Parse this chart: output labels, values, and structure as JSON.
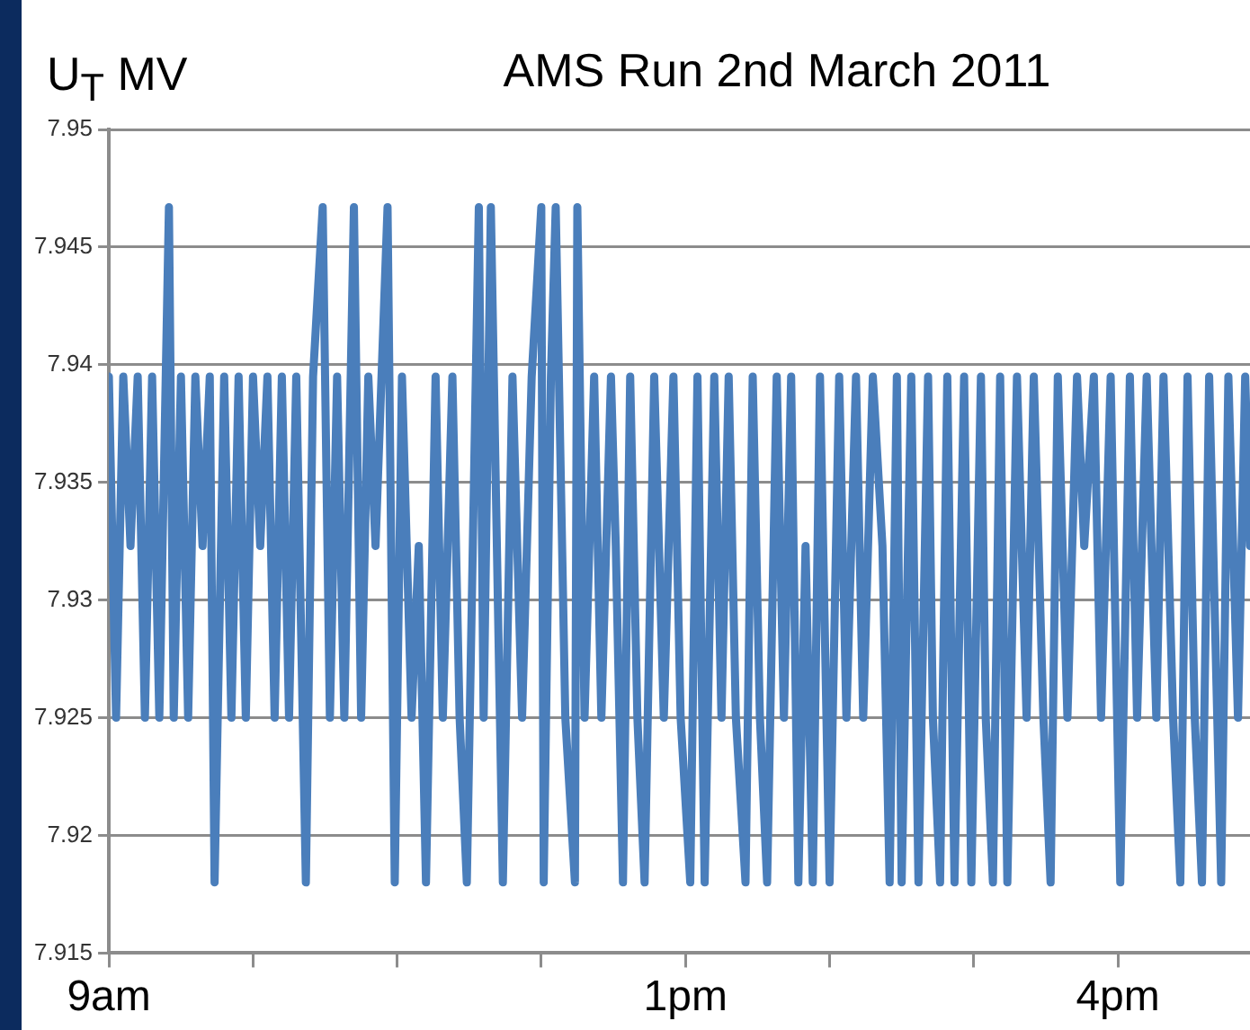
{
  "chart_data": {
    "type": "line",
    "title": "AMS Run 2nd March 2011",
    "ylabel": "U$_{T}$ MV",
    "x": [
      "2011-03-02T09:00",
      "2011-03-02T09:03",
      "2011-03-02T09:06",
      "2011-03-02T09:09",
      "2011-03-02T09:12",
      "2011-03-02T09:15",
      "2011-03-02T09:18",
      "2011-03-02T09:21",
      "2011-03-02T09:25",
      "2011-03-02T09:27",
      "2011-03-02T09:30",
      "2011-03-02T09:33",
      "2011-03-02T09:36",
      "2011-03-02T09:39",
      "2011-03-02T09:42",
      "2011-03-02T09:44",
      "2011-03-02T09:48",
      "2011-03-02T09:51",
      "2011-03-02T09:54",
      "2011-03-02T09:57",
      "2011-03-02T10:00",
      "2011-03-02T10:03",
      "2011-03-02T10:06",
      "2011-03-02T10:09",
      "2011-03-02T10:12",
      "2011-03-02T10:15",
      "2011-03-02T10:18",
      "2011-03-02T10:22",
      "2011-03-02T10:25",
      "2011-03-02T10:29",
      "2011-03-02T10:32",
      "2011-03-02T10:35",
      "2011-03-02T10:38",
      "2011-03-02T10:42",
      "2011-03-02T10:45",
      "2011-03-02T10:48",
      "2011-03-02T10:51",
      "2011-03-02T10:56",
      "2011-03-02T10:59",
      "2011-03-02T11:02",
      "2011-03-02T11:06",
      "2011-03-02T11:09",
      "2011-03-02T11:12",
      "2011-03-02T11:16",
      "2011-03-02T11:19",
      "2011-03-02T11:23",
      "2011-03-02T11:26",
      "2011-03-02T11:29",
      "2011-03-02T11:34",
      "2011-03-02T11:36",
      "2011-03-02T11:39",
      "2011-03-02T11:44",
      "2011-03-02T11:48",
      "2011-03-02T11:52",
      "2011-03-02T11:56",
      "2011-03-02T12:00",
      "2011-03-02T12:01",
      "2011-03-02T12:04",
      "2011-03-02T12:06",
      "2011-03-02T12:10",
      "2011-03-02T12:14",
      "2011-03-02T12:15",
      "2011-03-02T12:18",
      "2011-03-02T12:22",
      "2011-03-02T12:25",
      "2011-03-02T12:29",
      "2011-03-02T12:31",
      "2011-03-02T12:34",
      "2011-03-02T12:37",
      "2011-03-02T12:40",
      "2011-03-02T12:43",
      "2011-03-02T12:47",
      "2011-03-02T12:51",
      "2011-03-02T12:55",
      "2011-03-02T12:58",
      "2011-03-02T13:02",
      "2011-03-02T13:05",
      "2011-03-02T13:08",
      "2011-03-02T13:12",
      "2011-03-02T13:15",
      "2011-03-02T13:18",
      "2011-03-02T13:21",
      "2011-03-02T13:25",
      "2011-03-02T13:28",
      "2011-03-02T13:31",
      "2011-03-02T13:34",
      "2011-03-02T13:38",
      "2011-03-02T13:41",
      "2011-03-02T13:44",
      "2011-03-02T13:47",
      "2011-03-02T13:50",
      "2011-03-02T13:53",
      "2011-03-02T13:56",
      "2011-03-02T14:00",
      "2011-03-02T14:04",
      "2011-03-02T14:07",
      "2011-03-02T14:11",
      "2011-03-02T14:14",
      "2011-03-02T14:18",
      "2011-03-02T14:22",
      "2011-03-02T14:25",
      "2011-03-02T14:28",
      "2011-03-02T14:30",
      "2011-03-02T14:34",
      "2011-03-02T14:37",
      "2011-03-02T14:41",
      "2011-03-02T14:43",
      "2011-03-02T14:46",
      "2011-03-02T14:49",
      "2011-03-02T14:52",
      "2011-03-02T14:56",
      "2011-03-02T14:59",
      "2011-03-02T15:03",
      "2011-03-02T15:05",
      "2011-03-02T15:08",
      "2011-03-02T15:11",
      "2011-03-02T15:14",
      "2011-03-02T15:18",
      "2011-03-02T15:22",
      "2011-03-02T15:25",
      "2011-03-02T15:29",
      "2011-03-02T15:32",
      "2011-03-02T15:35",
      "2011-03-02T15:39",
      "2011-03-02T15:43",
      "2011-03-02T15:46",
      "2011-03-02T15:50",
      "2011-03-02T15:53",
      "2011-03-02T15:57",
      "2011-03-02T16:01",
      "2011-03-02T16:05",
      "2011-03-02T16:08",
      "2011-03-02T16:12",
      "2011-03-02T16:16",
      "2011-03-02T16:19",
      "2011-03-02T16:23",
      "2011-03-02T16:26",
      "2011-03-02T16:29",
      "2011-03-02T16:32",
      "2011-03-02T16:35",
      "2011-03-02T16:38",
      "2011-03-02T16:43",
      "2011-03-02T16:46",
      "2011-03-02T16:50",
      "2011-03-02T16:53",
      "2011-03-02T16:55"
    ],
    "series": [
      {
        "color": "#4a7ebb",
        "values": [
          7.9395,
          7.925,
          7.9395,
          7.9323,
          7.9395,
          7.925,
          7.9395,
          7.925,
          7.9467,
          7.925,
          7.9395,
          7.925,
          7.9395,
          7.9323,
          7.9395,
          7.918,
          7.9395,
          7.925,
          7.9395,
          7.925,
          7.9395,
          7.9323,
          7.9395,
          7.925,
          7.9395,
          7.925,
          7.9395,
          7.918,
          7.9395,
          7.9467,
          7.925,
          7.9395,
          7.925,
          7.9467,
          7.925,
          7.9395,
          7.9323,
          7.9467,
          7.918,
          7.9395,
          7.925,
          7.9323,
          7.918,
          7.9395,
          7.925,
          7.9395,
          7.925,
          7.918,
          7.9467,
          7.925,
          7.9467,
          7.918,
          7.9395,
          7.925,
          7.9395,
          7.9467,
          7.918,
          7.9395,
          7.9467,
          7.925,
          7.918,
          7.9467,
          7.925,
          7.9395,
          7.925,
          7.9395,
          7.9323,
          7.918,
          7.9395,
          7.925,
          7.918,
          7.9395,
          7.925,
          7.9395,
          7.925,
          7.918,
          7.9395,
          7.918,
          7.9395,
          7.925,
          7.9395,
          7.925,
          7.918,
          7.9395,
          7.925,
          7.918,
          7.9395,
          7.925,
          7.9395,
          7.918,
          7.9323,
          7.918,
          7.9395,
          7.918,
          7.9395,
          7.925,
          7.9395,
          7.925,
          7.9395,
          7.9323,
          7.918,
          7.9395,
          7.918,
          7.9395,
          7.918,
          7.9395,
          7.925,
          7.918,
          7.9395,
          7.918,
          7.9395,
          7.918,
          7.9395,
          7.925,
          7.918,
          7.9395,
          7.918,
          7.9395,
          7.925,
          7.9395,
          7.925,
          7.918,
          7.9395,
          7.925,
          7.9395,
          7.9323,
          7.9395,
          7.925,
          7.9395,
          7.918,
          7.9395,
          7.925,
          7.9395,
          7.925,
          7.9395,
          7.925,
          7.918,
          7.9395,
          7.925,
          7.918,
          7.9395,
          7.918,
          7.9395,
          7.925,
          7.9395,
          7.9323
        ]
      }
    ],
    "xlim": [
      "2011-03-02T09:00",
      "2011-03-02T16:55"
    ],
    "xticks": [
      {
        "value": "2011-03-02T09:00",
        "label": "9am"
      },
      {
        "value": "2011-03-02T10:00",
        "label": null
      },
      {
        "value": "2011-03-02T11:00",
        "label": null
      },
      {
        "value": "2011-03-02T12:00",
        "label": null
      },
      {
        "value": "2011-03-02T13:00",
        "label": "1pm"
      },
      {
        "value": "2011-03-02T14:00",
        "label": null
      },
      {
        "value": "2011-03-02T15:00",
        "label": null
      },
      {
        "value": "2011-03-02T16:00",
        "label": "4pm"
      }
    ],
    "ylim": [
      7.915,
      7.95
    ],
    "yticks": [
      7.915,
      7.92,
      7.925,
      7.93,
      7.935,
      7.94,
      7.945,
      7.95
    ],
    "grid": "y",
    "legend": false,
    "line_style": "solid"
  }
}
